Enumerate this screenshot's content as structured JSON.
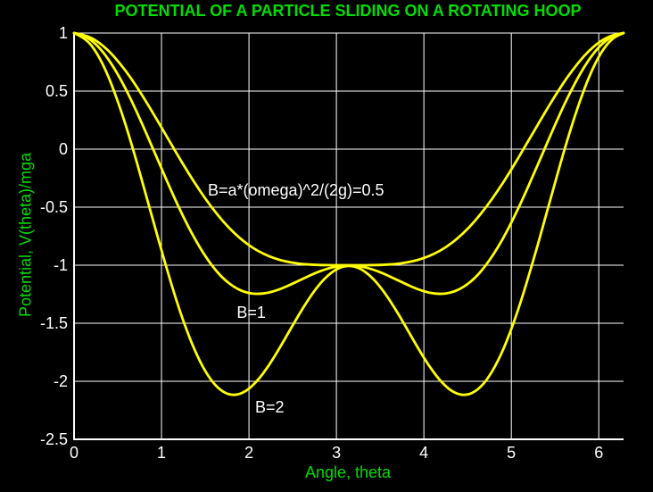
{
  "colors": {
    "background": "#000000",
    "label_green": "#00DD00",
    "curve_yellow": "#FFFF00",
    "grid_white": "#FFFFFF"
  },
  "chart_data": {
    "type": "line",
    "title": "POTENTIAL OF A PARTICLE SLIDING ON A ROTATING HOOP",
    "xlabel": "Angle, theta",
    "ylabel": "Potential, V(theta)/mga",
    "xlim": [
      0,
      6.2832
    ],
    "ylim": [
      -2.5,
      1
    ],
    "x_ticks": [
      0,
      1,
      2,
      3,
      4,
      5,
      6
    ],
    "y_ticks": [
      1,
      0.5,
      0,
      -0.5,
      -1,
      -1.5,
      -2,
      -2.5
    ],
    "grid": true,
    "legend": "none",
    "x": [
      0,
      0.1309,
      0.2618,
      0.3927,
      0.5236,
      0.6545,
      0.7854,
      0.9163,
      1.0472,
      1.1781,
      1.309,
      1.4399,
      1.5708,
      1.7017,
      1.8326,
      1.9635,
      2.0944,
      2.2253,
      2.3562,
      2.4871,
      2.618,
      2.7489,
      2.8798,
      3.0107,
      3.1416,
      3.2725,
      3.4034,
      3.5343,
      3.6652,
      3.7961,
      3.927,
      4.0579,
      4.1888,
      4.3197,
      4.4506,
      4.5815,
      4.7124,
      4.8433,
      4.9742,
      5.1051,
      5.236,
      5.3669,
      5.4978,
      5.6287,
      5.7596,
      5.8905,
      6.0214,
      6.1523,
      6.2832
    ],
    "series": [
      {
        "name": "B=0.5",
        "values": [
          1,
          0.9829,
          0.9324,
          0.8507,
          0.741,
          0.6081,
          0.4571,
          0.2941,
          0.125,
          -0.0441,
          -0.2077,
          -0.361,
          -0.5,
          -0.622,
          -0.7253,
          -0.8095,
          -0.875,
          -0.9235,
          -0.9571,
          -0.9787,
          -0.991,
          -0.9971,
          -0.9994,
          -1,
          -1,
          -1,
          -0.9994,
          -0.9971,
          -0.991,
          -0.9787,
          -0.9571,
          -0.9235,
          -0.875,
          -0.8095,
          -0.7253,
          -0.622,
          -0.5,
          -0.361,
          -0.2077,
          -0.0441,
          0.125,
          0.2941,
          0.4571,
          0.6081,
          0.741,
          0.8507,
          0.9324,
          0.9829,
          1
        ]
      },
      {
        "name": "B=1",
        "values": [
          1,
          0.9744,
          0.8989,
          0.7774,
          0.616,
          0.4228,
          0.2071,
          -0.0206,
          -0.25,
          -0.4709,
          -0.6742,
          -0.8524,
          -1,
          -1.1135,
          -1.1918,
          -1.2362,
          -1.25,
          -1.2382,
          -1.2071,
          -1.1639,
          -1.116,
          -1.0703,
          -1.0329,
          -1.0085,
          -1,
          -1.0085,
          -1.0329,
          -1.0703,
          -1.116,
          -1.1639,
          -1.2071,
          -1.2382,
          -1.25,
          -1.2362,
          -1.1918,
          -1.1135,
          -1,
          -0.8524,
          -0.6742,
          -0.4709,
          -0.25,
          -0.0206,
          0.2071,
          0.4228,
          0.616,
          0.7774,
          0.8989,
          0.9744,
          1
        ]
      },
      {
        "name": "B=2",
        "values": [
          1,
          0.9573,
          0.832,
          0.631,
          0.366,
          0.0522,
          -0.2929,
          -0.6501,
          -1,
          -1.3244,
          -1.6072,
          -1.8354,
          -2,
          -2.0965,
          -2.1248,
          -2.0898,
          -2,
          -1.8676,
          -1.7071,
          -1.5345,
          -1.366,
          -1.2168,
          -1.0999,
          -1.0255,
          -1,
          -1.0255,
          -1.0999,
          -1.2168,
          -1.366,
          -1.5345,
          -1.7071,
          -1.8676,
          -2,
          -2.0898,
          -2.1248,
          -2.0965,
          -2,
          -1.8354,
          -1.6072,
          -1.3244,
          -1,
          -0.6501,
          -0.2929,
          0.0522,
          0.366,
          0.631,
          0.832,
          0.9573,
          1
        ]
      }
    ],
    "annotations": [
      {
        "text": "B=a*(omega)^2/(2g)=0.5",
        "x": 1.53,
        "y": -0.35
      },
      {
        "text": "B=1",
        "x": 1.86,
        "y": -1.41
      },
      {
        "text": "B=2",
        "x": 2.07,
        "y": -2.22
      }
    ]
  }
}
